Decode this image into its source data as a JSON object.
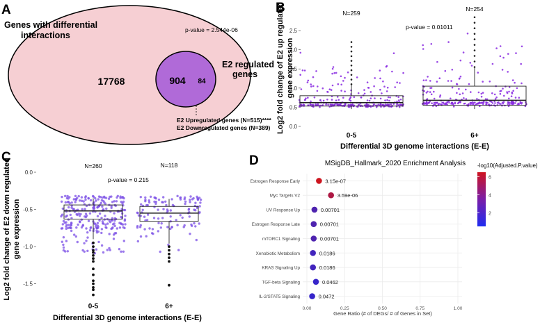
{
  "panel_letters": {
    "a": "A",
    "b": "B",
    "c": "C",
    "d": "D"
  },
  "venn": {
    "outer_label_line1": "Genes with differential",
    "outer_label_line2": "interactions",
    "outer_only": "17768",
    "overlap": "904",
    "inner_only": "84",
    "inner_label_line1": "E2 regulated",
    "inner_label_line2": "genes",
    "pvalue": "p-value = 2.544e-06",
    "up_note": "E2 Upregulated genes (N=515)****",
    "down_note": "E2 Downregulated genes (N=389)"
  },
  "chart_data": [
    {
      "id": "B",
      "type": "box",
      "ylabel_line1": "Log2 fold change of E2 up regulated",
      "ylabel_line2": "gene expression",
      "xlabel": "Differential 3D genome interactions (E-E)",
      "categories": [
        "0-5",
        "6+"
      ],
      "n_labels": [
        "N=259",
        "N=254"
      ],
      "pvalue": "p-value = 0.01011",
      "yticks": [
        "0.0",
        "0.5",
        "1.0",
        "1.5",
        "2.0",
        "2.5"
      ],
      "ylim": [
        0,
        2.9
      ],
      "box_stats": [
        {
          "q1": 0.53,
          "median": 0.62,
          "q3": 0.8,
          "whisker_low": 0.45,
          "whisker_high": 1.1,
          "max_outlier": 2.2
        },
        {
          "q1": 0.55,
          "median": 0.68,
          "q3": 1.05,
          "whisker_low": 0.45,
          "whisker_high": 1.55,
          "max_outlier": 2.85
        }
      ]
    },
    {
      "id": "C",
      "type": "box",
      "ylabel_line1": "Log2 fold change of E2 down regulated",
      "ylabel_line2": "gene expression",
      "xlabel": "Differential 3D genome interactions (E-E)",
      "categories": [
        "0-5",
        "6+"
      ],
      "n_labels": [
        "N=260",
        "N=118"
      ],
      "pvalue": "p-value = 0.215",
      "yticks": [
        "0.0",
        "-0.5",
        "-1.0",
        "-1.5"
      ],
      "ylim": [
        -1.7,
        0
      ],
      "box_stats": [
        {
          "q1": -0.63,
          "median": -0.52,
          "q3": -0.44,
          "whisker_low": -0.9,
          "whisker_high": -0.35
        },
        {
          "q1": -0.66,
          "median": -0.55,
          "q3": -0.46,
          "whisker_low": -0.96,
          "whisker_high": -0.36
        }
      ],
      "outliers_0_5": [
        -0.95,
        -1.0,
        -1.05,
        -1.08,
        -1.12,
        -1.16,
        -1.2,
        -1.3,
        -1.38,
        -1.46,
        -1.5,
        -1.55,
        -1.58,
        -1.65
      ],
      "outliers_6plus": [
        -1.0,
        -1.05,
        -1.1,
        -1.15,
        -1.2,
        -1.52
      ]
    },
    {
      "id": "D",
      "type": "scatter",
      "title": "MSigDB_Hallmark_2020 Enrichment Analysis",
      "xlabel": "Gene Ratio (# of DEGs/ # of Genes in Set)",
      "xticks": [
        "0.00",
        "0.25",
        "0.50",
        "0.75",
        "1.00"
      ],
      "xlim": [
        0,
        1
      ],
      "legend_title": "-log10(Adjusted.P.value)",
      "legend_ticks": [
        "6",
        "4",
        "2"
      ],
      "color_range": [
        0.5,
        6.5
      ],
      "terms": [
        {
          "name": "Estrogen Response Early",
          "ratio": 0.08,
          "padj": "3.15e-07",
          "neglog": 6.5
        },
        {
          "name": "Myc Targets V2",
          "ratio": 0.16,
          "padj": "3.59e-06",
          "neglog": 5.4
        },
        {
          "name": "UV Response Up",
          "ratio": 0.05,
          "padj": "0.00701",
          "neglog": 2.15
        },
        {
          "name": "Estrogen Response Late",
          "ratio": 0.045,
          "padj": "0.00701",
          "neglog": 2.15
        },
        {
          "name": "mTORC1 Signaling",
          "ratio": 0.045,
          "padj": "0.00701",
          "neglog": 2.15
        },
        {
          "name": "Xenobiotic Metabolism",
          "ratio": 0.04,
          "padj": "0.0186",
          "neglog": 1.73
        },
        {
          "name": "KRAS Signaling Up",
          "ratio": 0.04,
          "padj": "0.0186",
          "neglog": 1.73
        },
        {
          "name": "TGF-beta Signaling",
          "ratio": 0.06,
          "padj": "0.0462",
          "neglog": 1.34
        },
        {
          "name": "IL-2/STAT5 Signaling",
          "ratio": 0.035,
          "padj": "0.0472",
          "neglog": 1.33
        }
      ]
    }
  ]
}
